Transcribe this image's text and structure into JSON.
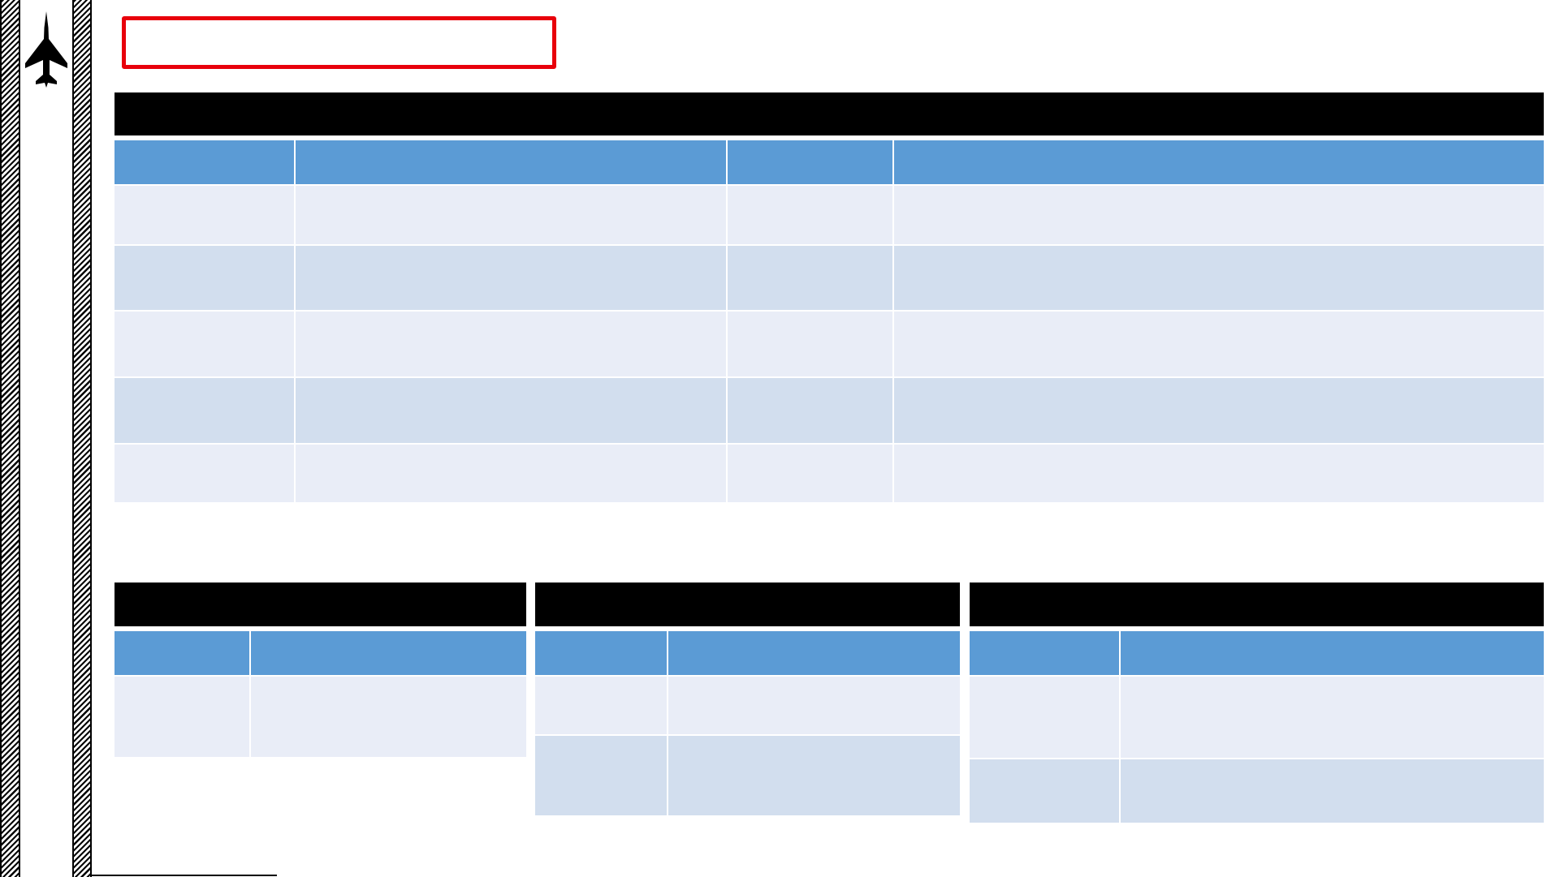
{
  "page": {
    "title": ""
  },
  "main_table": {
    "title": "",
    "columns": [
      "",
      "",
      "",
      ""
    ],
    "rows": [
      [
        "",
        "",
        "",
        ""
      ],
      [
        "",
        "",
        "",
        ""
      ],
      [
        "",
        "",
        "",
        ""
      ],
      [
        "",
        "",
        "",
        ""
      ],
      [
        "",
        "",
        "",
        ""
      ]
    ]
  },
  "left_table": {
    "title": "",
    "columns": [
      "",
      ""
    ],
    "rows": [
      [
        "",
        ""
      ]
    ]
  },
  "middle_table": {
    "title": "",
    "columns": [
      "",
      ""
    ],
    "rows": [
      [
        "",
        ""
      ],
      [
        "",
        ""
      ]
    ]
  },
  "right_table": {
    "title": "",
    "columns": [
      "",
      ""
    ],
    "rows": [
      [
        "",
        ""
      ],
      [
        "",
        ""
      ]
    ]
  },
  "icons": {
    "logo": "fighter-jet-icon"
  },
  "colors": {
    "band": "#000000",
    "header": "#5b9bd5",
    "row_light": "#e9edf7",
    "row_dark": "#d2deee",
    "title_border": "#e8000b"
  }
}
